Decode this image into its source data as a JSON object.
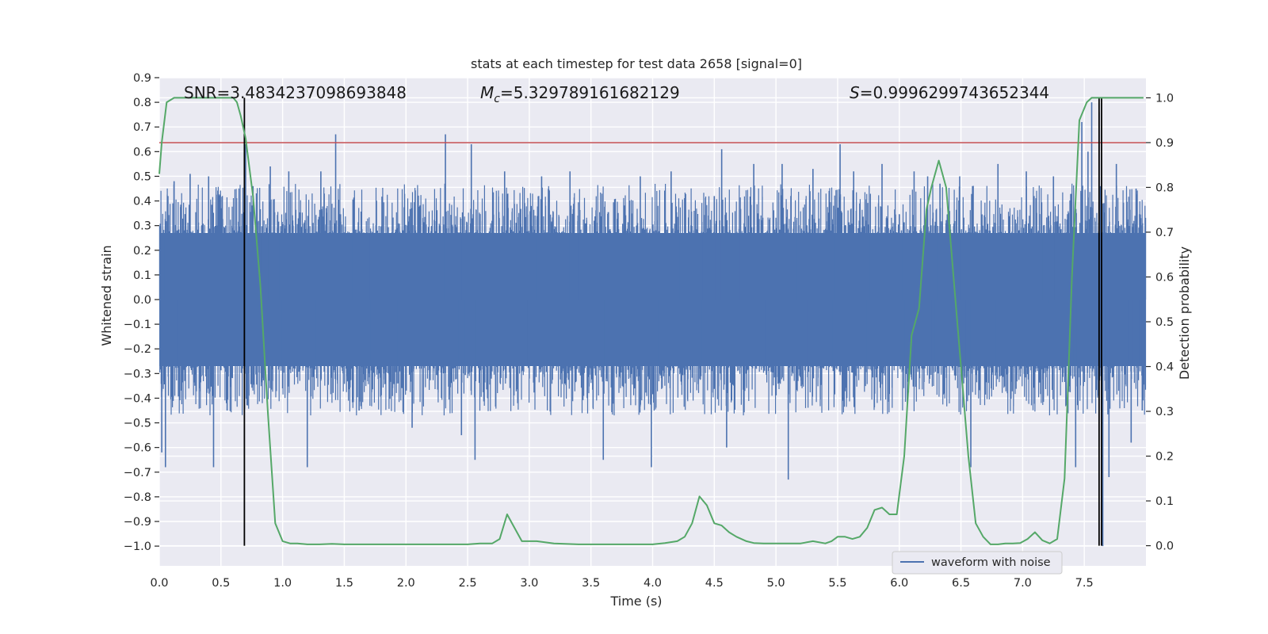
{
  "chart_data": {
    "type": "line",
    "title": "stats at each timestep for test data 2658 [signal=0]",
    "xlabel": "Time (s)",
    "ylabel_left": "Whitened strain",
    "ylabel_right": "Detection probability",
    "xlim": [
      0,
      8
    ],
    "ylim_left": [
      -1.08,
      0.9
    ],
    "ylim_right": [
      -0.045,
      1.045
    ],
    "x_ticks": [
      "0.0",
      "0.5",
      "1.0",
      "1.5",
      "2.0",
      "2.5",
      "3.0",
      "3.5",
      "4.0",
      "4.5",
      "5.0",
      "5.5",
      "6.0",
      "6.5",
      "7.0",
      "7.5"
    ],
    "y_ticks_left": [
      "0.9",
      "0.8",
      "0.7",
      "0.6",
      "0.5",
      "0.4",
      "0.3",
      "0.2",
      "0.1",
      "0.0",
      "−0.1",
      "−0.2",
      "−0.3",
      "−0.4",
      "−0.5",
      "−0.6",
      "−0.7",
      "−0.8",
      "−0.9",
      "−1.0"
    ],
    "y_ticks_right": [
      "0.0",
      "0.1",
      "0.2",
      "0.3",
      "0.4",
      "0.5",
      "0.6",
      "0.7",
      "0.8",
      "0.9",
      "1.0"
    ],
    "grid": true,
    "annotations": {
      "snr": "SNR=3.4834237098693848",
      "mc": "=5.329789161682129",
      "mc_symbol": "M",
      "mc_sub": "c",
      "s": "=0.9996299743652344",
      "s_symbol": "S"
    },
    "legend": {
      "placement": "lower-right",
      "entries": [
        "waveform with noise"
      ]
    },
    "threshold": {
      "value": 0.9,
      "axis": "right",
      "color": "#c44e52"
    },
    "vertical_lines": [
      0.69,
      7.62,
      7.64
    ],
    "series": [
      {
        "name": "waveform with noise",
        "axis": "left",
        "color": "#4c72b0",
        "kind": "noise",
        "band": 0.27,
        "typical_peak": 0.42,
        "spikes": [
          [
            0.02,
            -0.62
          ],
          [
            0.05,
            -0.68
          ],
          [
            0.07,
            0.42
          ],
          [
            0.12,
            0.48
          ],
          [
            0.25,
            0.51
          ],
          [
            0.4,
            0.5
          ],
          [
            0.44,
            -0.68
          ],
          [
            0.55,
            -0.45
          ],
          [
            0.7,
            0.63
          ],
          [
            0.76,
            0.46
          ],
          [
            0.9,
            0.54
          ],
          [
            1.0,
            -0.36
          ],
          [
            1.05,
            0.52
          ],
          [
            1.2,
            -0.68
          ],
          [
            1.31,
            0.52
          ],
          [
            1.43,
            0.67
          ],
          [
            1.62,
            -0.45
          ],
          [
            2.05,
            -0.52
          ],
          [
            2.32,
            0.67
          ],
          [
            2.45,
            -0.55
          ],
          [
            2.53,
            0.63
          ],
          [
            2.56,
            -0.65
          ],
          [
            2.8,
            0.52
          ],
          [
            3.1,
            0.5
          ],
          [
            3.33,
            0.52
          ],
          [
            3.6,
            -0.65
          ],
          [
            3.9,
            0.5
          ],
          [
            3.99,
            -0.68
          ],
          [
            4.15,
            0.52
          ],
          [
            4.5,
            0.42
          ],
          [
            4.56,
            0.61
          ],
          [
            4.6,
            -0.6
          ],
          [
            4.82,
            0.55
          ],
          [
            5.05,
            0.55
          ],
          [
            5.1,
            -0.73
          ],
          [
            5.3,
            0.53
          ],
          [
            5.52,
            0.63
          ],
          [
            5.63,
            0.52
          ],
          [
            5.86,
            0.55
          ],
          [
            6.12,
            0.52
          ],
          [
            6.23,
            0.5
          ],
          [
            6.33,
            0.47
          ],
          [
            6.49,
            0.5
          ],
          [
            6.58,
            -0.68
          ],
          [
            6.8,
            0.55
          ],
          [
            7.03,
            0.52
          ],
          [
            7.25,
            0.5
          ],
          [
            7.43,
            -0.68
          ],
          [
            7.48,
            0.72
          ],
          [
            7.53,
            0.6
          ],
          [
            7.56,
            0.8
          ],
          [
            7.62,
            0.76
          ],
          [
            7.65,
            -1.0
          ],
          [
            7.7,
            -0.72
          ],
          [
            7.76,
            0.55
          ],
          [
            7.88,
            -0.58
          ],
          [
            7.92,
            0.45
          ],
          [
            7.97,
            -0.45
          ]
        ]
      },
      {
        "name": "",
        "axis": "right",
        "color": "#55a868",
        "kind": "line",
        "x": [
          0.0,
          0.02,
          0.06,
          0.12,
          0.2,
          0.3,
          0.4,
          0.5,
          0.6,
          0.63,
          0.66,
          0.7,
          0.76,
          0.82,
          0.88,
          0.94,
          1.0,
          1.06,
          1.12,
          1.2,
          1.3,
          1.4,
          1.5,
          1.6,
          1.8,
          2.0,
          2.2,
          2.4,
          2.5,
          2.6,
          2.7,
          2.76,
          2.82,
          2.88,
          2.94,
          3.0,
          3.06,
          3.2,
          3.4,
          3.6,
          3.8,
          4.0,
          4.1,
          4.2,
          4.26,
          4.32,
          4.38,
          4.44,
          4.5,
          4.56,
          4.62,
          4.68,
          4.76,
          4.82,
          4.9,
          5.0,
          5.1,
          5.2,
          5.3,
          5.4,
          5.45,
          5.5,
          5.56,
          5.62,
          5.68,
          5.74,
          5.8,
          5.86,
          5.92,
          5.98,
          6.04,
          6.1,
          6.16,
          6.22,
          6.26,
          6.32,
          6.38,
          6.44,
          6.5,
          6.56,
          6.62,
          6.68,
          6.74,
          6.8,
          6.86,
          6.92,
          6.98,
          7.04,
          7.1,
          7.16,
          7.22,
          7.28,
          7.34,
          7.4,
          7.46,
          7.52,
          7.56,
          7.6,
          7.65,
          7.7,
          7.76,
          7.82,
          7.9,
          7.98
        ],
        "y": [
          0.83,
          0.9,
          0.99,
          1.0,
          1.0,
          1.0,
          1.0,
          1.0,
          1.0,
          0.99,
          0.96,
          0.91,
          0.78,
          0.58,
          0.3,
          0.05,
          0.01,
          0.005,
          0.005,
          0.003,
          0.003,
          0.004,
          0.003,
          0.003,
          0.003,
          0.003,
          0.003,
          0.003,
          0.003,
          0.005,
          0.005,
          0.015,
          0.07,
          0.04,
          0.01,
          0.01,
          0.01,
          0.005,
          0.003,
          0.003,
          0.003,
          0.003,
          0.006,
          0.01,
          0.02,
          0.05,
          0.11,
          0.09,
          0.05,
          0.045,
          0.03,
          0.02,
          0.01,
          0.006,
          0.005,
          0.005,
          0.005,
          0.005,
          0.01,
          0.005,
          0.01,
          0.02,
          0.02,
          0.015,
          0.02,
          0.04,
          0.08,
          0.085,
          0.07,
          0.07,
          0.2,
          0.47,
          0.53,
          0.75,
          0.8,
          0.86,
          0.8,
          0.6,
          0.4,
          0.2,
          0.05,
          0.02,
          0.003,
          0.003,
          0.005,
          0.005,
          0.006,
          0.015,
          0.03,
          0.012,
          0.005,
          0.015,
          0.15,
          0.6,
          0.95,
          0.99,
          1.0,
          1.0,
          1.0,
          1.0,
          1.0,
          1.0,
          1.0,
          1.0
        ]
      }
    ]
  }
}
